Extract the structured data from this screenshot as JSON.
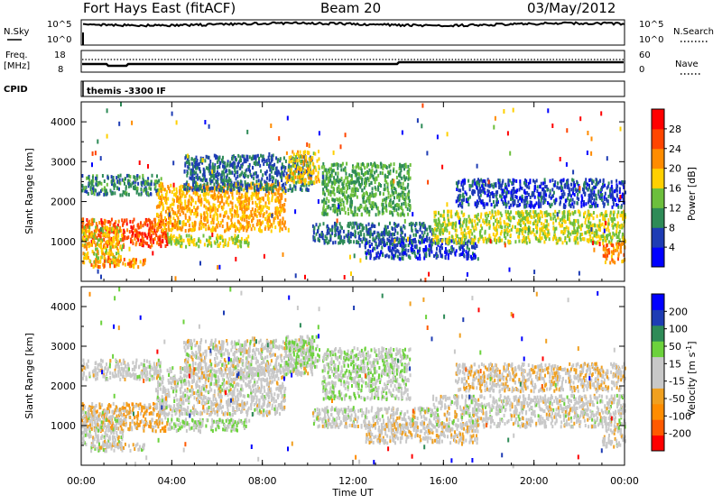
{
  "header": {
    "station": "Fort Hays East (fitACF)",
    "beam": "Beam 20",
    "date": "03/May/2012"
  },
  "nsky_panel": {
    "left_label": "N.Sky",
    "left_ticks": [
      "10^5",
      "10^0"
    ],
    "right_label": "N.Search",
    "right_ticks": [
      "10^5",
      "10^0"
    ]
  },
  "freq_panel": {
    "left_label_line1": "Freq.",
    "left_label_line2": "[MHz]",
    "left_ticks": [
      "18",
      "8"
    ],
    "right_label": "Nave",
    "right_ticks": [
      "60",
      "0"
    ]
  },
  "cpid_panel": {
    "label": "CPID",
    "program": "themis -3300 IF"
  },
  "colors": {
    "power_scale": [
      "#0000ff",
      "#1e3cb4",
      "#2e8b57",
      "#6cbf3c",
      "#ffd000",
      "#ff8c00",
      "#ff4500",
      "#ff0000"
    ],
    "velocity_scale": [
      "#ff0000",
      "#ff5a00",
      "#ff8c00",
      "#f0a020",
      "#c8c8c8",
      "#c8c8c8",
      "#6cd23c",
      "#2e8b57",
      "#1e3cb4",
      "#0000ff"
    ]
  },
  "chart_data": [
    {
      "type": "heatmap",
      "quantity": "power",
      "ylabel": "Slant Range [km]",
      "yticks": [
        "1000",
        "2000",
        "3000",
        "4000"
      ],
      "ylim": [
        0,
        4500
      ],
      "xlim": [
        0,
        24
      ],
      "colorbar": {
        "label": "Power [dB]",
        "ticks": [
          "4",
          "8",
          "12",
          "16",
          "20",
          "24",
          "28"
        ],
        "range": [
          0,
          32
        ]
      },
      "echo_bands": [
        {
          "x": [
            0,
            3.8
          ],
          "y": [
            900,
            1600
          ],
          "level": 26
        },
        {
          "x": [
            0,
            3.5
          ],
          "y": [
            2200,
            2700
          ],
          "level": 10
        },
        {
          "x": [
            0,
            1.8
          ],
          "y": [
            500,
            1400
          ],
          "level": 18
        },
        {
          "x": [
            0.4,
            2.8
          ],
          "y": [
            400,
            600
          ],
          "level": 22
        },
        {
          "x": [
            3.3,
            9.0
          ],
          "y": [
            1300,
            2500
          ],
          "level": 20
        },
        {
          "x": [
            3.8,
            7.4
          ],
          "y": [
            900,
            1200
          ],
          "level": 16
        },
        {
          "x": [
            4.5,
            10.2
          ],
          "y": [
            2300,
            3200
          ],
          "level": 8
        },
        {
          "x": [
            9.0,
            10.5
          ],
          "y": [
            2500,
            3300
          ],
          "level": 18
        },
        {
          "x": [
            10.6,
            14.5
          ],
          "y": [
            1700,
            3000
          ],
          "level": 12
        },
        {
          "x": [
            10.2,
            15.5
          ],
          "y": [
            1000,
            1500
          ],
          "level": 8
        },
        {
          "x": [
            12.5,
            17.5
          ],
          "y": [
            600,
            1100
          ],
          "level": 6
        },
        {
          "x": [
            15.5,
            24.0
          ],
          "y": [
            1000,
            1800
          ],
          "level": 16
        },
        {
          "x": [
            16.5,
            24.0
          ],
          "y": [
            1900,
            2600
          ],
          "level": 6
        },
        {
          "x": [
            23.0,
            24.0
          ],
          "y": [
            500,
            1000
          ],
          "level": 22
        }
      ]
    },
    {
      "type": "heatmap",
      "quantity": "velocity",
      "ylabel": "Slant Range [km]",
      "yticks": [
        "1000",
        "2000",
        "3000",
        "4000"
      ],
      "ylim": [
        0,
        4500
      ],
      "xlim": [
        0,
        24
      ],
      "xlabel": "Time UT",
      "xticks": [
        "00:00",
        "04:00",
        "08:00",
        "12:00",
        "16:00",
        "20:00",
        "00:00"
      ],
      "colorbar": {
        "label": "Velocity [m s",
        "label_sup": "-1",
        "label_end": "]",
        "ticks": [
          "-200",
          "-100",
          "-50",
          "-15",
          "15",
          "50",
          "100",
          "200"
        ],
        "range": [
          -250,
          250
        ]
      },
      "echo_bands": [
        {
          "x": [
            0,
            3.8
          ],
          "y": [
            900,
            1600
          ],
          "v": -60
        },
        {
          "x": [
            0,
            3.5
          ],
          "y": [
            2200,
            2700
          ],
          "v": 0
        },
        {
          "x": [
            0,
            1.8
          ],
          "y": [
            500,
            1400
          ],
          "v": 0
        },
        {
          "x": [
            0.4,
            2.8
          ],
          "y": [
            400,
            600
          ],
          "v": 0
        },
        {
          "x": [
            3.3,
            9.0
          ],
          "y": [
            1300,
            2500
          ],
          "v": 0
        },
        {
          "x": [
            3.8,
            7.4
          ],
          "y": [
            900,
            1200
          ],
          "v": 40
        },
        {
          "x": [
            4.5,
            10.2
          ],
          "y": [
            2300,
            3200
          ],
          "v": 0
        },
        {
          "x": [
            9.0,
            10.5
          ],
          "y": [
            2500,
            3300
          ],
          "v": 40
        },
        {
          "x": [
            10.6,
            14.5
          ],
          "y": [
            1700,
            3000
          ],
          "v": 30
        },
        {
          "x": [
            10.2,
            15.5
          ],
          "y": [
            1000,
            1500
          ],
          "v": 0
        },
        {
          "x": [
            12.5,
            17.5
          ],
          "y": [
            600,
            1100
          ],
          "v": -20
        },
        {
          "x": [
            15.5,
            24.0
          ],
          "y": [
            1000,
            1800
          ],
          "v": 0
        },
        {
          "x": [
            16.5,
            24.0
          ],
          "y": [
            1900,
            2600
          ],
          "v": -30
        },
        {
          "x": [
            23.0,
            24.0
          ],
          "y": [
            500,
            1000
          ],
          "v": 0
        }
      ]
    }
  ]
}
